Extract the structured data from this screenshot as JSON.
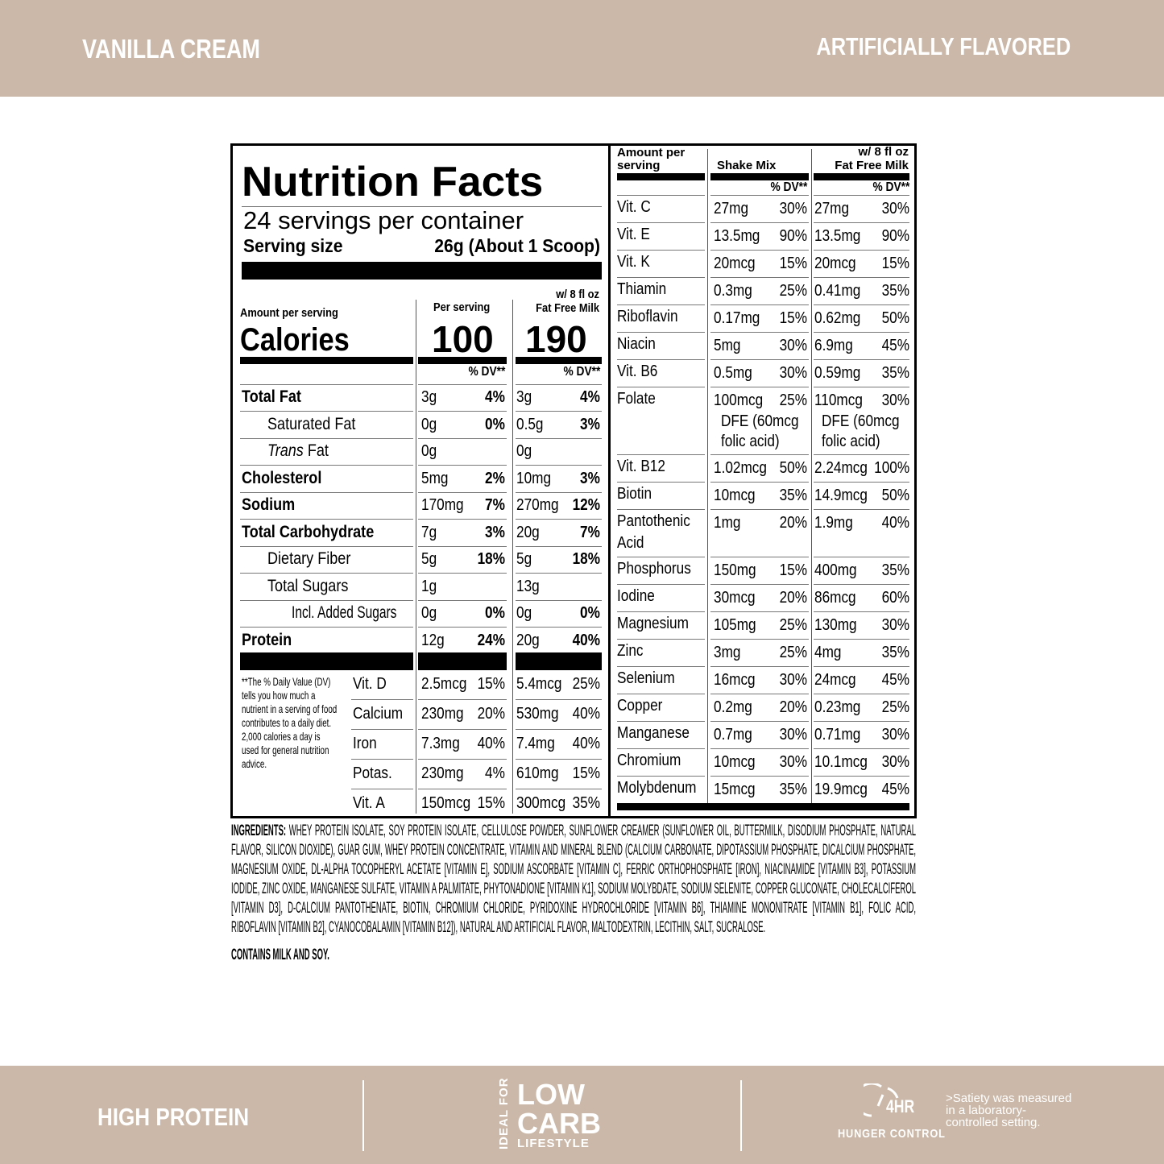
{
  "header": {
    "flavor": "VANILLA CREAM",
    "flavoring": "ARTIFICIALLY FLAVORED"
  },
  "colors": {
    "band": "#cbb8a8",
    "text_on_band": "#ffffff"
  },
  "label": {
    "title": "Nutrition Facts",
    "servings": "24 servings per container",
    "serving_size_label": "Serving size",
    "serving_size_value": "26g (About 1 Scoop)",
    "amount_per_serving": "Amount per serving",
    "calories_label": "Calories",
    "col1_header": "Per serving",
    "col2_header_line1": "w/ 8 fl oz",
    "col2_header_line2": "Fat Free Milk",
    "calories_col1": "100",
    "calories_col2": "190",
    "dv_header": "% DV**",
    "rows": [
      {
        "name": "Total Fat",
        "type": "main",
        "a1": "3g",
        "d1": "4%",
        "a2": "3g",
        "d2": "4%"
      },
      {
        "name": "Saturated Fat",
        "type": "sub",
        "a1": "0g",
        "d1": "0%",
        "a2": "0.5g",
        "d2": "3%"
      },
      {
        "name": "Trans Fat",
        "type": "sub",
        "a1": "0g",
        "d1": "",
        "a2": "0g",
        "d2": ""
      },
      {
        "name": "Cholesterol",
        "type": "main",
        "a1": "5mg",
        "d1": "2%",
        "a2": "10mg",
        "d2": "3%"
      },
      {
        "name": "Sodium",
        "type": "main",
        "a1": "170mg",
        "d1": "7%",
        "a2": "270mg",
        "d2": "12%"
      },
      {
        "name": "Total Carbohydrate",
        "type": "main",
        "a1": "7g",
        "d1": "3%",
        "a2": "20g",
        "d2": "7%"
      },
      {
        "name": "Dietary Fiber",
        "type": "sub",
        "a1": "5g",
        "d1": "18%",
        "a2": "5g",
        "d2": "18%"
      },
      {
        "name": "Total Sugars",
        "type": "sub",
        "a1": "1g",
        "d1": "",
        "a2": "13g",
        "d2": ""
      },
      {
        "name": "Incl. Added Sugars",
        "type": "subsub",
        "a1": "0g",
        "d1": "0%",
        "a2": "0g",
        "d2": "0%"
      },
      {
        "name": "Protein",
        "type": "main",
        "a1": "12g",
        "d1": "24%",
        "a2": "20g",
        "d2": "40%"
      }
    ],
    "footnote": "**The % Daily Value (DV) tells you how much a nutrient in a serving of food contributes to a daily diet. 2,000 calories a day is used for general nutrition advice.",
    "vitamins_left": [
      {
        "name": "Vit. D",
        "a1": "2.5mcg",
        "d1": "15%",
        "a2": "5.4mcg",
        "d2": "25%"
      },
      {
        "name": "Calcium",
        "a1": "230mg",
        "d1": "20%",
        "a2": "530mg",
        "d2": "40%"
      },
      {
        "name": "Iron",
        "a1": "7.3mg",
        "d1": "40%",
        "a2": "7.4mg",
        "d2": "40%"
      },
      {
        "name": "Potas.",
        "a1": "230mg",
        "d1": "4%",
        "a2": "610mg",
        "d2": "15%"
      },
      {
        "name": "Vit. A",
        "a1": "150mcg",
        "d1": "15%",
        "a2": "300mcg",
        "d2": "35%"
      }
    ],
    "right": {
      "amount_header": "Amount per serving",
      "col1_header": "Shake Mix",
      "col2_header_line1": "w/ 8 fl oz",
      "col2_header_line2": "Fat Free Milk",
      "dv_header": "% DV**",
      "rows": [
        {
          "name": "Vit. C",
          "a1": "27mg",
          "d1": "30%",
          "a2": "27mg",
          "d2": "30%"
        },
        {
          "name": "Vit. E",
          "a1": "13.5mg",
          "d1": "90%",
          "a2": "13.5mg",
          "d2": "90%"
        },
        {
          "name": "Vit. K",
          "a1": "20mcg",
          "d1": "15%",
          "a2": "20mcg",
          "d2": "15%"
        },
        {
          "name": "Thiamin",
          "a1": "0.3mg",
          "d1": "25%",
          "a2": "0.41mg",
          "d2": "35%"
        },
        {
          "name": "Riboflavin",
          "a1": "0.17mg",
          "d1": "15%",
          "a2": "0.62mg",
          "d2": "50%"
        },
        {
          "name": "Niacin",
          "a1": "5mg",
          "d1": "30%",
          "a2": "6.9mg",
          "d2": "45%"
        },
        {
          "name": "Vit. B6",
          "a1": "0.5mg",
          "d1": "30%",
          "a2": "0.59mg",
          "d2": "35%"
        },
        {
          "name": "Folate",
          "a1": "100mcg",
          "d1": "25%",
          "a2": "110mcg",
          "d2": "30%",
          "n1": "DFE (60mcg",
          "n2": "folic acid)"
        },
        {
          "name": "Vit. B12",
          "a1": "1.02mcg",
          "d1": "50%",
          "a2": "2.24mcg",
          "d2": "100%"
        },
        {
          "name": "Biotin",
          "a1": "10mcg",
          "d1": "35%",
          "a2": "14.9mcg",
          "d2": "50%"
        },
        {
          "name": "Pantothenic",
          "name2": "Acid",
          "a1": "1mg",
          "d1": "20%",
          "a2": "1.9mg",
          "d2": "40%"
        },
        {
          "name": "Phosphorus",
          "a1": "150mg",
          "d1": "15%",
          "a2": "400mg",
          "d2": "35%"
        },
        {
          "name": "Iodine",
          "a1": "30mcg",
          "d1": "20%",
          "a2": "86mcg",
          "d2": "60%"
        },
        {
          "name": "Magnesium",
          "a1": "105mg",
          "d1": "25%",
          "a2": "130mg",
          "d2": "30%"
        },
        {
          "name": "Zinc",
          "a1": "3mg",
          "d1": "25%",
          "a2": "4mg",
          "d2": "35%"
        },
        {
          "name": "Selenium",
          "a1": "16mcg",
          "d1": "30%",
          "a2": "24mcg",
          "d2": "45%"
        },
        {
          "name": "Copper",
          "a1": "0.2mg",
          "d1": "20%",
          "a2": "0.23mg",
          "d2": "25%"
        },
        {
          "name": "Manganese",
          "a1": "0.7mg",
          "d1": "30%",
          "a2": "0.71mg",
          "d2": "30%"
        },
        {
          "name": "Chromium",
          "a1": "10mcg",
          "d1": "30%",
          "a2": "10.1mcg",
          "d2": "30%"
        },
        {
          "name": "Molybdenum",
          "a1": "15mcg",
          "d1": "35%",
          "a2": "19.9mcg",
          "d2": "45%"
        }
      ]
    }
  },
  "ingredients": {
    "label": "INGREDIENTS:",
    "text": "WHEY PROTEIN ISOLATE, SOY PROTEIN ISOLATE, CELLULOSE POWDER, SUNFLOWER CREAMER (SUNFLOWER OIL, BUTTERMILK, DISODIUM PHOSPHATE, NATURAL FLAVOR, SILICON DIOXIDE), GUAR GUM, WHEY PROTEIN CONCENTRATE, VITAMIN AND MINERAL BLEND (CALCIUM CARBONATE, DIPOTASSIUM PHOSPHATE, DICALCIUM PHOSPHATE, MAGNESIUM OXIDE, DL-ALPHA TOCOPHERYL ACETATE [VITAMIN E], SODIUM ASCORBATE [VITAMIN C], FERRIC ORTHOPHOSPHATE [IRON], NIACINAMIDE [VITAMIN B3], POTASSIUM IODIDE, ZINC OXIDE, MANGANESE SULFATE, VITAMIN A PALMITATE, PHYTONADIONE [VITAMIN K1], SODIUM MOLYBDATE, SODIUM SELENITE, COPPER GLUCONATE, CHOLECALCIFEROL [VITAMIN D3], D-CALCIUM PANTOTHENATE, BIOTIN, CHROMIUM CHLORIDE, PYRIDOXINE HYDROCHLORIDE [VITAMIN B6], THIAMINE MONONITRATE [VITAMIN B1], FOLIC ACID, RIBOFLAVIN [VITAMIN B2], CYANOCOBALAMIN [VITAMIN B12]), NATURAL AND ARTIFICIAL FLAVOR, MALTODEXTRIN, LECITHIN, SALT, SUCRALOSE.",
    "allergens": "CONTAINS MILK AND SOY."
  },
  "footer": {
    "high_protein": "HIGH PROTEIN",
    "ideal_for": "IDEAL FOR",
    "low": "LOW",
    "carb": "CARB",
    "lifestyle": "LIFESTYLE",
    "hunger_hours": "4HR",
    "hunger_control": "HUNGER CONTROL",
    "satiety_note": ">Satiety was measured in a laboratory-controlled setting.",
    "icon": "clock-icon"
  }
}
